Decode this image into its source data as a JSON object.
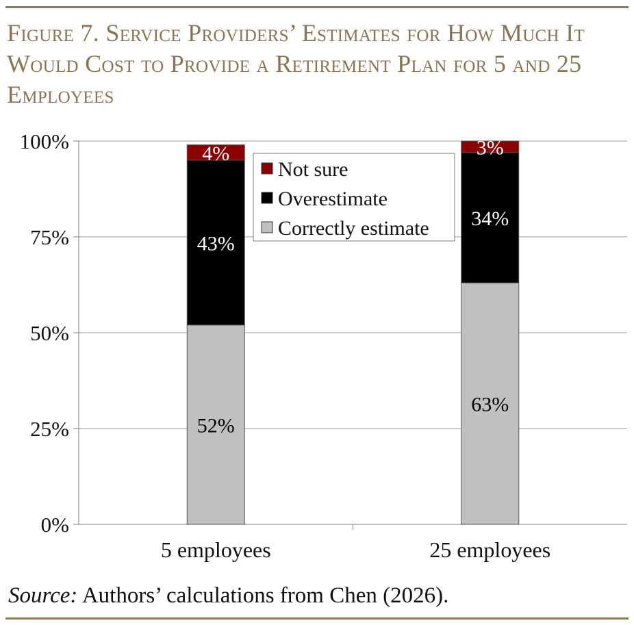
{
  "figure": {
    "title": "Figure 7. Service Providers’ Estimates for How Much It Would Cost to Provide a Retirement Plan for 5 and 25 Employees",
    "source_label": "Source:",
    "source_text": " Authors’ calculations from Chen (2026)."
  },
  "chart_data": {
    "type": "bar",
    "stacked": true,
    "categories": [
      "5 employees",
      "25 employees"
    ],
    "series": [
      {
        "name": "Correctly estimate",
        "values": [
          52,
          63
        ],
        "labels": [
          "52%",
          "63%"
        ],
        "color": "#c0c0c0",
        "label_color": "#000000"
      },
      {
        "name": "Overestimate",
        "values": [
          43,
          34
        ],
        "labels": [
          "43%",
          "34%"
        ],
        "color": "#000000",
        "label_color": "#ffffff"
      },
      {
        "name": "Not sure",
        "values": [
          4,
          3
        ],
        "labels": [
          "4%",
          "3%"
        ],
        "color": "#8b0000",
        "label_color": "#ffffff"
      }
    ],
    "ylim": [
      0,
      100
    ],
    "y_ticks": [
      0,
      25,
      50,
      75,
      100
    ],
    "y_tick_labels": [
      "0%",
      "25%",
      "50%",
      "75%",
      "100%"
    ],
    "grid": true,
    "legend": {
      "position": "top-center",
      "entries": [
        "Not sure",
        "Overestimate",
        "Correctly estimate"
      ]
    },
    "title": "",
    "xlabel": "",
    "ylabel": ""
  }
}
